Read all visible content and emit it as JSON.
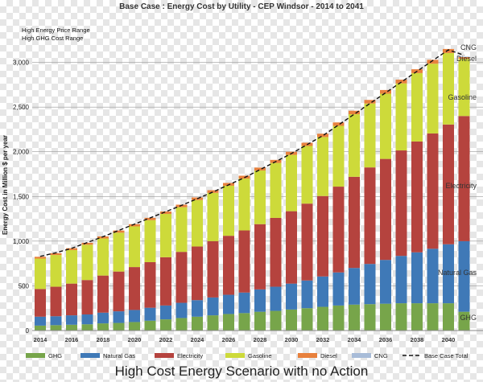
{
  "chart_data": {
    "type": "bar",
    "stacked": true,
    "title": "Base Case : Energy Cost by Utility - CEP Windsor - 2014 to 2041",
    "subtitle_lines": [
      "High Energy Price Range",
      "High GHG Cost Range"
    ],
    "ylabel": "Energy Cost in Million $ per year",
    "ylim": [
      0,
      3500
    ],
    "yticks": [
      0,
      500,
      1000,
      1500,
      2000,
      2500,
      3000
    ],
    "ytick_labels": [
      "0",
      "500",
      "1,000",
      "1,500",
      "2,000",
      "2,500",
      "3,000"
    ],
    "grid": true,
    "legend_position": "bottom",
    "categories": [
      2014,
      2015,
      2016,
      2017,
      2018,
      2019,
      2020,
      2021,
      2022,
      2023,
      2024,
      2025,
      2026,
      2027,
      2028,
      2029,
      2030,
      2031,
      2032,
      2033,
      2034,
      2035,
      2036,
      2037,
      2038,
      2039,
      2040,
      2041
    ],
    "xtick_labels": [
      "2014",
      "2016",
      "2018",
      "2020",
      "2022",
      "2024",
      "2026",
      "2028",
      "2030",
      "2032",
      "2034",
      "2036",
      "2038",
      "2040"
    ],
    "series": [
      {
        "name": "GHG",
        "color": "#77a54a",
        "values": [
          55,
          60,
          65,
          70,
          80,
          85,
          95,
          110,
          125,
          140,
          155,
          170,
          185,
          195,
          210,
          220,
          235,
          250,
          265,
          280,
          290,
          295,
          300,
          305,
          305,
          305,
          305,
          210
        ]
      },
      {
        "name": "Natural Gas",
        "color": "#3f79b7",
        "values": [
          100,
          100,
          105,
          110,
          120,
          130,
          135,
          145,
          155,
          170,
          185,
          200,
          215,
          230,
          250,
          270,
          290,
          310,
          340,
          370,
          410,
          450,
          490,
          530,
          570,
          610,
          660,
          790
        ]
      },
      {
        "name": "Electricity",
        "color": "#b5433e",
        "values": [
          310,
          330,
          355,
          385,
          415,
          445,
          480,
          510,
          540,
          570,
          600,
          630,
          660,
          695,
          730,
          770,
          810,
          860,
          900,
          960,
          1020,
          1080,
          1130,
          1180,
          1240,
          1290,
          1340,
          1400
        ]
      },
      {
        "name": "Gasoline",
        "color": "#cdda3a",
        "values": [
          340,
          355,
          375,
          395,
          415,
          435,
          455,
          470,
          485,
          500,
          520,
          540,
          560,
          580,
          600,
          615,
          630,
          645,
          660,
          680,
          700,
          715,
          730,
          750,
          765,
          780,
          800,
          640
        ]
      },
      {
        "name": "Diesel",
        "color": "#e8813d",
        "values": [
          20,
          20,
          21,
          22,
          23,
          24,
          25,
          26,
          27,
          28,
          29,
          30,
          31,
          32,
          33,
          34,
          35,
          36,
          37,
          38,
          39,
          40,
          41,
          42,
          43,
          44,
          45,
          20
        ]
      },
      {
        "name": "CNG",
        "color": "#a8bcd8",
        "values": [
          0,
          0,
          0,
          0,
          0,
          0,
          0,
          0,
          0,
          0,
          0,
          0,
          0,
          0,
          0,
          0,
          0,
          0,
          0,
          0,
          0,
          0,
          0,
          0,
          0,
          0,
          0,
          5
        ]
      }
    ],
    "base_case_total": {
      "name": "Base Case Total",
      "values": [
        830,
        870,
        920,
        985,
        1050,
        1120,
        1190,
        1260,
        1330,
        1400,
        1475,
        1550,
        1630,
        1710,
        1800,
        1890,
        1980,
        2080,
        2180,
        2300,
        2420,
        2540,
        2660,
        2780,
        2900,
        3020,
        3140,
        3080
      ]
    },
    "right_labels": [
      "CNG",
      "Diesel",
      "Gasoline",
      "Electricity",
      "Natural Gas",
      "GHG"
    ]
  },
  "caption": "High Cost Energy Scenario with no Action"
}
